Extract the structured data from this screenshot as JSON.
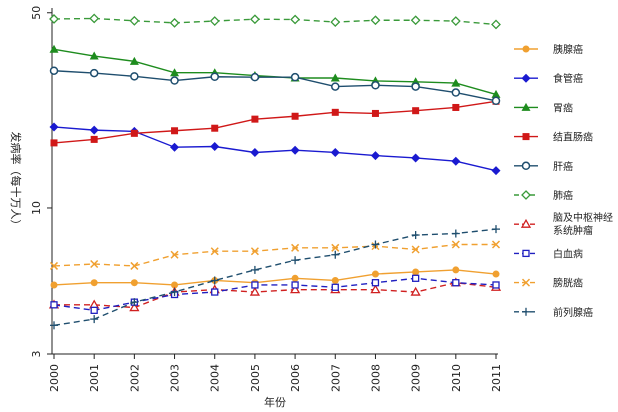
{
  "chart_data": {
    "type": "line",
    "xlabel": "年份",
    "ylabel": "发病率（每十万人）",
    "yscale": "log",
    "ylim": [
      3,
      52
    ],
    "yticks": [
      3,
      10,
      50
    ],
    "x": [
      "2000",
      "2001",
      "2002",
      "2003",
      "2004",
      "2005",
      "2006",
      "2007",
      "2008",
      "2009",
      "2010",
      "2011"
    ],
    "legend_position": "right",
    "series": [
      {
        "name": "胰腺癌",
        "color": "#f0a030",
        "dash": "solid",
        "marker": "circle-filled",
        "values": [
          5.3,
          5.4,
          5.4,
          5.3,
          5.5,
          5.4,
          5.6,
          5.5,
          5.8,
          5.9,
          6.0,
          5.8
        ]
      },
      {
        "name": "食管癌",
        "color": "#1a1ad0",
        "dash": "solid",
        "marker": "diamond-filled",
        "values": [
          19.5,
          19.0,
          18.8,
          16.5,
          16.6,
          15.8,
          16.1,
          15.8,
          15.4,
          15.1,
          14.7,
          13.6
        ]
      },
      {
        "name": "胃癌",
        "color": "#1e8c1e",
        "dash": "solid",
        "marker": "triangle-filled",
        "values": [
          37.0,
          35.0,
          33.5,
          30.5,
          30.5,
          29.8,
          29.2,
          29.2,
          28.5,
          28.3,
          28.0,
          25.5
        ]
      },
      {
        "name": "结直肠癌",
        "color": "#d01818",
        "dash": "solid",
        "marker": "square-filled",
        "values": [
          17.1,
          17.6,
          18.5,
          18.9,
          19.3,
          20.8,
          21.3,
          22.0,
          21.8,
          22.3,
          22.9,
          24.1
        ]
      },
      {
        "name": "肝癌",
        "color": "#1f4e6e",
        "dash": "solid",
        "marker": "circle-open",
        "values": [
          31.0,
          30.4,
          29.6,
          28.6,
          29.5,
          29.4,
          29.4,
          27.2,
          27.5,
          27.2,
          25.9,
          24.2
        ]
      },
      {
        "name": "肺癌",
        "color": "#3a9a3a",
        "dash": "dashed",
        "marker": "diamond-open",
        "values": [
          47.5,
          47.7,
          46.8,
          46.0,
          46.7,
          47.4,
          47.3,
          46.3,
          47.0,
          47.0,
          46.7,
          45.4
        ]
      },
      {
        "name": "脑及中枢神经系统肿瘤",
        "color": "#d02020",
        "dash": "dashed",
        "marker": "triangle-open",
        "values": [
          4.5,
          4.5,
          4.4,
          5.0,
          5.1,
          5.0,
          5.1,
          5.1,
          5.1,
          5.0,
          5.4,
          5.2
        ]
      },
      {
        "name": "白血病",
        "color": "#2020c0",
        "dash": "dashed",
        "marker": "square-open",
        "values": [
          4.5,
          4.3,
          4.6,
          4.9,
          5.0,
          5.3,
          5.3,
          5.2,
          5.4,
          5.6,
          5.4,
          5.3
        ]
      },
      {
        "name": "膀胱癌",
        "color": "#f0a030",
        "dash": "dashed",
        "marker": "x",
        "values": [
          6.2,
          6.3,
          6.2,
          6.8,
          7.0,
          7.0,
          7.2,
          7.2,
          7.3,
          7.1,
          7.4,
          7.4
        ]
      },
      {
        "name": "前列腺癌",
        "color": "#1f4e6e",
        "dash": "dashed",
        "marker": "plus",
        "values": [
          3.8,
          4.0,
          4.6,
          5.0,
          5.5,
          6.0,
          6.5,
          6.8,
          7.4,
          8.0,
          8.1,
          8.4
        ]
      }
    ]
  }
}
